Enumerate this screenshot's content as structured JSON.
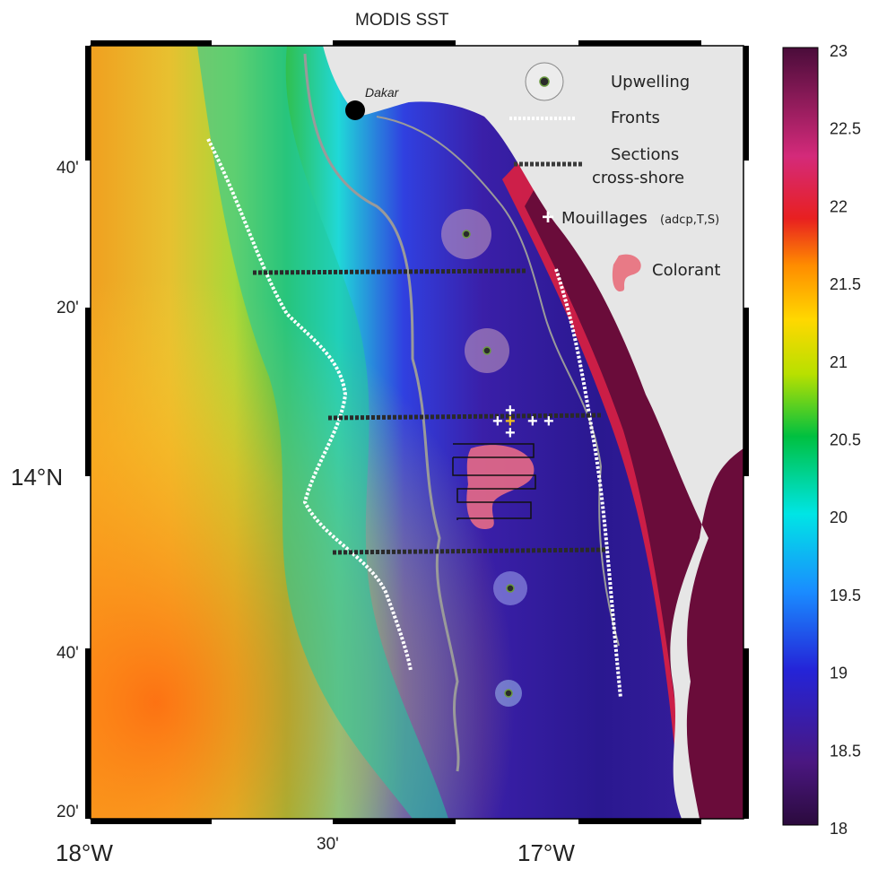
{
  "title": "MODIS SST",
  "map": {
    "place_label": "Dakar",
    "lat_ticks": [
      "40'",
      "20'",
      "14°N",
      "40'",
      "20'"
    ],
    "lon_ticks": [
      "18°W",
      "30'",
      "17°W"
    ]
  },
  "legend": {
    "upwelling": "Upwelling",
    "fronts": "Fronts",
    "sections_1": "Sections",
    "sections_2": "cross-shore",
    "moorings": "Mouillages",
    "moorings_sub": "(adcp,T,S)",
    "dye": "Colorant"
  },
  "colorbar": {
    "ticks": [
      "23",
      "22.5",
      "22",
      "21.5",
      "21",
      "20.5",
      "20",
      "19.5",
      "19",
      "18.5",
      "18"
    ],
    "min": 18,
    "max": 23,
    "colormap": [
      "#2b0a3d",
      "#4a1780",
      "#2424d8",
      "#1a8cff",
      "#00e5e5",
      "#00c040",
      "#b8e000",
      "#ffd800",
      "#ff8c00",
      "#e82020",
      "#d42a7a",
      "#4a0c3a"
    ]
  }
}
